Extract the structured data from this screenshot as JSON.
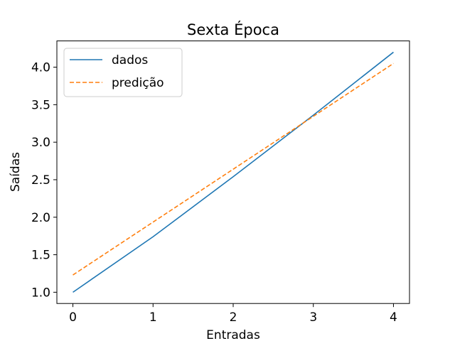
{
  "chart_data": {
    "type": "line",
    "title": "Sexta Época",
    "xlabel": "Entradas",
    "ylabel": "Saídas",
    "xlim": [
      -0.2,
      4.2
    ],
    "ylim": [
      0.85,
      4.35
    ],
    "xticks": [
      0,
      1,
      2,
      3,
      4
    ],
    "yticks": [
      1.0,
      1.5,
      2.0,
      2.5,
      3.0,
      3.5,
      4.0
    ],
    "xtick_labels": [
      "0",
      "1",
      "2",
      "3",
      "4"
    ],
    "ytick_labels": [
      "1.0",
      "1.5",
      "2.0",
      "2.5",
      "3.0",
      "3.5",
      "4.0"
    ],
    "grid": false,
    "legend_position": "top-left",
    "series": [
      {
        "name": "dados",
        "color": "#1f77b4",
        "style": "solid",
        "x": [
          0,
          1,
          2,
          3,
          4
        ],
        "y": [
          1.0,
          1.74,
          2.54,
          3.36,
          4.2
        ]
      },
      {
        "name": "predição",
        "color": "#ff7f0e",
        "style": "dashed",
        "x": [
          0,
          4
        ],
        "y": [
          1.23,
          4.05
        ]
      }
    ]
  }
}
